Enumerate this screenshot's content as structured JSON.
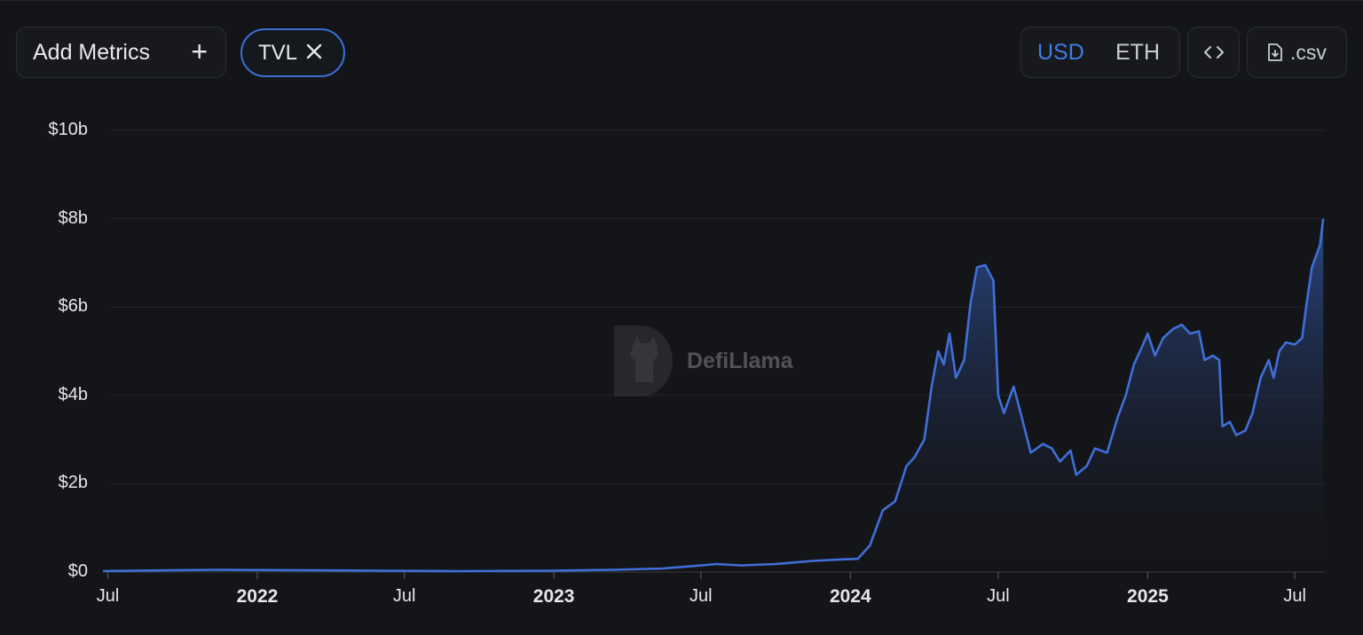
{
  "toolbar": {
    "add_metrics_label": "Add Metrics",
    "add_icon": "plus-icon",
    "metric_chip_label": "TVL",
    "remove_icon": "close-icon",
    "currency_options": [
      "USD",
      "ETH"
    ],
    "selected_currency": "USD",
    "embed_icon": "code-brackets-icon",
    "csv_label": ".csv",
    "csv_icon": "file-download-icon"
  },
  "watermark": {
    "text": "DefiLlama",
    "icon": "llama-logo-icon"
  },
  "colors": {
    "background": "#141518",
    "line": "#3f6fd8",
    "accent": "#3f7ce6",
    "grid": "#24262b"
  },
  "chart_data": {
    "type": "area",
    "title": "",
    "xlabel": "",
    "ylabel": "",
    "x_range": [
      "2021-06-25",
      "2025-08-07"
    ],
    "ylim": [
      0,
      10000000000
    ],
    "y_ticks": [
      {
        "value": 0,
        "label": "$0"
      },
      {
        "value": 2000000000,
        "label": "$2b"
      },
      {
        "value": 4000000000,
        "label": "$4b"
      },
      {
        "value": 6000000000,
        "label": "$6b"
      },
      {
        "value": 8000000000,
        "label": "$8b"
      },
      {
        "value": 10000000000,
        "label": "$10b"
      }
    ],
    "x_ticks": [
      {
        "date": "2021-07-01",
        "label": "Jul",
        "bold": false
      },
      {
        "date": "2022-01-01",
        "label": "2022",
        "bold": true
      },
      {
        "date": "2022-07-01",
        "label": "Jul",
        "bold": false
      },
      {
        "date": "2023-01-01",
        "label": "2023",
        "bold": true
      },
      {
        "date": "2023-07-01",
        "label": "Jul",
        "bold": false
      },
      {
        "date": "2024-01-01",
        "label": "2024",
        "bold": true
      },
      {
        "date": "2024-07-01",
        "label": "Jul",
        "bold": false
      },
      {
        "date": "2025-01-01",
        "label": "2025",
        "bold": true
      },
      {
        "date": "2025-07-01",
        "label": "Jul",
        "bold": false
      }
    ],
    "grid": true,
    "legend": "none",
    "series": [
      {
        "points": [
          [
            "2021-06-25",
            20000000.0
          ],
          [
            "2021-09-15",
            40000000.0
          ],
          [
            "2021-11-15",
            50000000.0
          ],
          [
            "2022-03-01",
            40000000.0
          ],
          [
            "2022-06-01",
            30000000.0
          ],
          [
            "2022-09-01",
            20000000.0
          ],
          [
            "2023-01-01",
            30000000.0
          ],
          [
            "2023-03-15",
            50000000.0
          ],
          [
            "2023-05-15",
            80000000.0
          ],
          [
            "2023-07-01",
            150000000.0
          ],
          [
            "2023-07-20",
            180000000.0
          ],
          [
            "2023-08-20",
            150000000.0
          ],
          [
            "2023-10-01",
            180000000.0
          ],
          [
            "2023-11-15",
            250000000.0
          ],
          [
            "2023-12-15",
            280000000.0
          ],
          [
            "2024-01-10",
            300000000.0
          ],
          [
            "2024-01-25",
            600000000.0
          ],
          [
            "2024-02-10",
            1400000000.0
          ],
          [
            "2024-02-25",
            1600000000.0
          ],
          [
            "2024-03-10",
            2400000000.0
          ],
          [
            "2024-03-20",
            2600000000.0
          ],
          [
            "2024-04-01",
            3000000000.0
          ],
          [
            "2024-04-10",
            4200000000.0
          ],
          [
            "2024-04-18",
            5000000000.0
          ],
          [
            "2024-04-25",
            4700000000.0
          ],
          [
            "2024-05-02",
            5400000000.0
          ],
          [
            "2024-05-10",
            4400000000.0
          ],
          [
            "2024-05-20",
            4800000000.0
          ],
          [
            "2024-05-28",
            6100000000.0
          ],
          [
            "2024-06-05",
            6900000000.0
          ],
          [
            "2024-06-15",
            6950000000.0
          ],
          [
            "2024-06-25",
            6600000000.0
          ],
          [
            "2024-07-01",
            4000000000.0
          ],
          [
            "2024-07-08",
            3600000000.0
          ],
          [
            "2024-07-20",
            4200000000.0
          ],
          [
            "2024-07-30",
            3500000000.0
          ],
          [
            "2024-08-10",
            2700000000.0
          ],
          [
            "2024-08-25",
            2900000000.0
          ],
          [
            "2024-09-05",
            2800000000.0
          ],
          [
            "2024-09-15",
            2500000000.0
          ],
          [
            "2024-09-28",
            2750000000.0
          ],
          [
            "2024-10-05",
            2200000000.0
          ],
          [
            "2024-10-18",
            2400000000.0
          ],
          [
            "2024-10-28",
            2800000000.0
          ],
          [
            "2024-11-12",
            2700000000.0
          ],
          [
            "2024-11-25",
            3500000000.0
          ],
          [
            "2024-12-05",
            4000000000.0
          ],
          [
            "2024-12-15",
            4700000000.0
          ],
          [
            "2024-12-25",
            5100000000.0
          ],
          [
            "2025-01-01",
            5400000000.0
          ],
          [
            "2025-01-10",
            4900000000.0
          ],
          [
            "2025-01-20",
            5300000000.0
          ],
          [
            "2025-02-01",
            5500000000.0
          ],
          [
            "2025-02-12",
            5600000000.0
          ],
          [
            "2025-02-22",
            5400000000.0
          ],
          [
            "2025-03-05",
            5450000000.0
          ],
          [
            "2025-03-12",
            4800000000.0
          ],
          [
            "2025-03-22",
            4900000000.0
          ],
          [
            "2025-03-30",
            4800000000.0
          ],
          [
            "2025-04-03",
            3300000000.0
          ],
          [
            "2025-04-12",
            3400000000.0
          ],
          [
            "2025-04-20",
            3100000000.0
          ],
          [
            "2025-05-01",
            3200000000.0
          ],
          [
            "2025-05-10",
            3600000000.0
          ],
          [
            "2025-05-20",
            4400000000.0
          ],
          [
            "2025-05-30",
            4800000000.0
          ],
          [
            "2025-06-05",
            4400000000.0
          ],
          [
            "2025-06-12",
            5000000000.0
          ],
          [
            "2025-06-20",
            5200000000.0
          ],
          [
            "2025-07-01",
            5150000000.0
          ],
          [
            "2025-07-10",
            5300000000.0
          ],
          [
            "2025-07-15",
            6000000000.0
          ],
          [
            "2025-07-22",
            6900000000.0
          ],
          [
            "2025-07-26",
            7100000000.0
          ],
          [
            "2025-08-01",
            7400000000.0
          ],
          [
            "2025-08-05",
            8000000000.0
          ]
        ]
      }
    ]
  }
}
